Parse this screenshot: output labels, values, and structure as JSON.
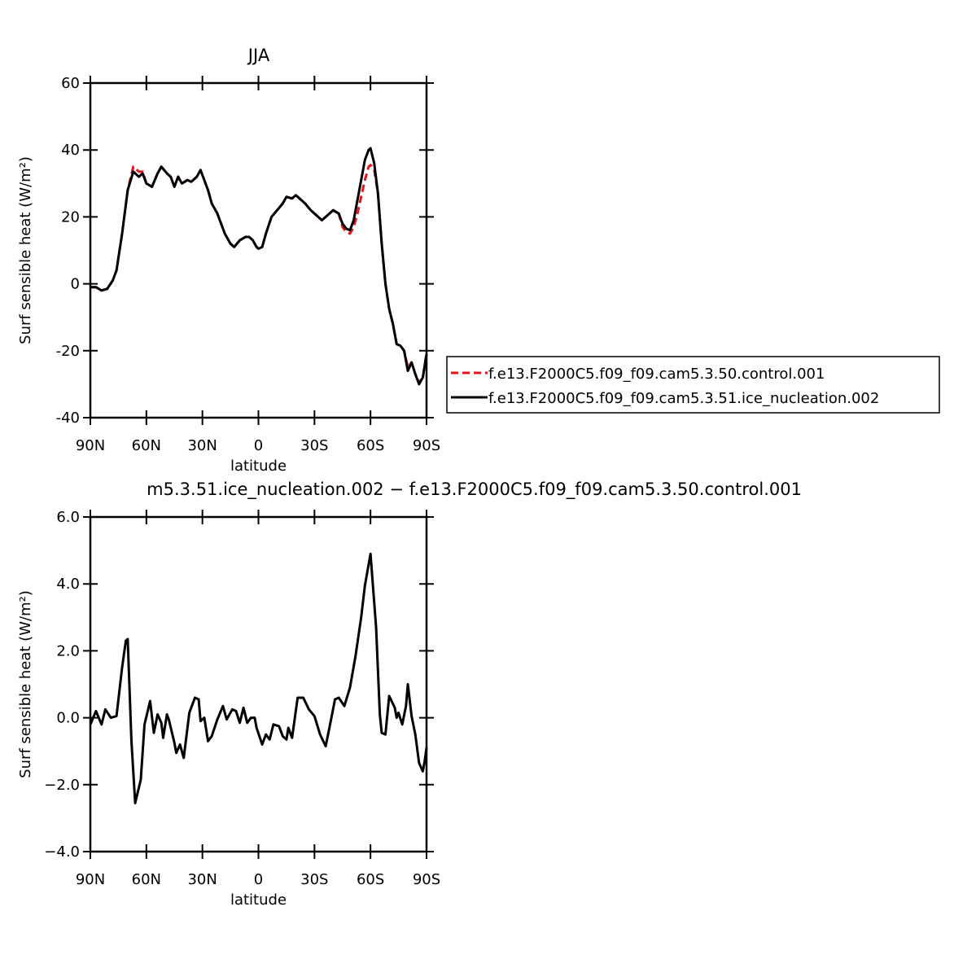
{
  "chart_data": [
    {
      "type": "line",
      "title": "JJA",
      "x_label": "latitude",
      "y_label": "Surf sensible heat (W/m²)",
      "xlim": [
        90,
        -90
      ],
      "xticks": [
        {
          "value": 90,
          "label": "90N"
        },
        {
          "value": 60,
          "label": "60N"
        },
        {
          "value": 30,
          "label": "30N"
        },
        0,
        {
          "value": -30,
          "label": "30S"
        },
        {
          "value": -60,
          "label": "60S"
        },
        {
          "value": -90,
          "label": "90S"
        }
      ],
      "ylim": [
        -40,
        60
      ],
      "yticks": [
        -40,
        -20,
        0,
        20,
        40,
        60
      ],
      "legend": "right",
      "x": [
        90,
        87,
        84,
        81,
        78,
        76,
        73,
        70,
        67,
        64,
        62,
        60,
        57,
        54,
        52,
        49,
        47,
        45,
        43,
        41,
        38,
        36,
        33,
        31,
        29,
        27,
        25,
        22,
        20,
        18,
        15,
        13,
        10,
        7,
        5,
        3,
        1,
        0,
        -2,
        -4,
        -7,
        -10,
        -13,
        -15,
        -18,
        -20,
        -22,
        -25,
        -28,
        -31,
        -34,
        -37,
        -40,
        -43,
        -45,
        -47,
        -49,
        -51,
        -53,
        -55,
        -57,
        -59,
        -60,
        -62,
        -64,
        -66,
        -68,
        -70,
        -72,
        -74,
        -76,
        -78,
        -80,
        -82,
        -84,
        -86,
        -88,
        -90
      ],
      "series": [
        {
          "name": "f.e13.F2000C5.f09_f09.cam5.3.50.control.001",
          "color": "#e8141b",
          "dash": true,
          "values": [
            -1,
            -1,
            -2,
            -1.5,
            1,
            4,
            15,
            28,
            35,
            33.5,
            33.5,
            30,
            29,
            33,
            35,
            33,
            32,
            29,
            32,
            30,
            31,
            30.5,
            32,
            34,
            31,
            28,
            24,
            21,
            18,
            15,
            12,
            11,
            13,
            14,
            14,
            13,
            11,
            10.5,
            11,
            15,
            20,
            22,
            24,
            26,
            25.5,
            26.5,
            25.5,
            24,
            22,
            20.5,
            19,
            20.5,
            22,
            21,
            17,
            15.5,
            15,
            17,
            21,
            26,
            31,
            35,
            35.5,
            34,
            27,
            12,
            0,
            -7.5,
            -12,
            -18,
            -18.5,
            -20,
            -25,
            -23.5,
            -27,
            -29.5,
            -28,
            -21
          ]
        },
        {
          "name": "f.e13.F2000C5.f09_f09.cam5.3.51.ice_nucleation.002",
          "color": "#000000",
          "dash": false,
          "values": [
            -1,
            -1,
            -2,
            -1.5,
            1,
            4,
            15,
            28,
            33.5,
            32,
            33,
            30,
            29,
            33,
            35,
            33,
            32,
            29,
            32,
            30,
            31,
            30.5,
            32,
            34,
            31,
            28,
            24,
            21,
            18,
            15,
            12,
            11,
            13,
            14,
            14,
            13,
            11,
            10.5,
            11,
            15,
            20,
            22,
            24,
            26,
            25.5,
            26.5,
            25.5,
            24,
            22,
            20.5,
            19,
            20.5,
            22,
            21,
            18,
            16.5,
            16,
            19,
            25,
            31,
            37,
            40,
            40.5,
            36,
            27,
            12,
            0,
            -7.5,
            -12,
            -18,
            -18.5,
            -20,
            -26,
            -23.5,
            -27,
            -30,
            -28,
            -21
          ]
        }
      ]
    },
    {
      "type": "line",
      "title": "m5.3.51.ice_nucleation.002 − f.e13.F2000C5.f09_f09.cam5.3.50.control.001",
      "x_label": "latitude",
      "y_label": "Surf sensible heat (W/m²)",
      "xlim": [
        90,
        -90
      ],
      "xticks": [
        {
          "value": 90,
          "label": "90N"
        },
        {
          "value": 60,
          "label": "60N"
        },
        {
          "value": 30,
          "label": "30N"
        },
        0,
        {
          "value": -30,
          "label": "30S"
        },
        {
          "value": -60,
          "label": "60S"
        },
        {
          "value": -90,
          "label": "90S"
        }
      ],
      "ylim": [
        -4,
        6
      ],
      "yticks": [
        {
          "value": -4,
          "label": "−4.0"
        },
        {
          "value": -2,
          "label": "−2.0"
        },
        {
          "value": 0,
          "label": "0.0"
        },
        {
          "value": 2,
          "label": "2.0"
        },
        {
          "value": 4,
          "label": "4.0"
        },
        {
          "value": 6,
          "label": "6.0"
        }
      ],
      "x": [
        90,
        87,
        84,
        82,
        79,
        76,
        73,
        71,
        70,
        68,
        66,
        63,
        61,
        58,
        56,
        54,
        52,
        51,
        49,
        48,
        45,
        44,
        42,
        40,
        37,
        34,
        32,
        31,
        29,
        27,
        25,
        22,
        19,
        17,
        14,
        12,
        10,
        8,
        6,
        4,
        2,
        1,
        -2,
        -4,
        -6,
        -8,
        -11,
        -13,
        -15,
        -16,
        -18,
        -21,
        -24,
        -27,
        -30,
        -33,
        -36,
        -38,
        -41,
        -43,
        -46,
        -49,
        -52,
        -55,
        -57,
        -60,
        -63,
        -65,
        -66,
        -68,
        -70,
        -73,
        -74,
        -75,
        -77,
        -79,
        -80,
        -82,
        -84,
        -86,
        -88,
        -89,
        -90
      ],
      "series": [
        {
          "color": "#000000",
          "dash": false,
          "values": [
            -0.2,
            0.2,
            -0.2,
            0.25,
            0,
            0.05,
            1.5,
            2.3,
            2.35,
            -0.7,
            -2.55,
            -1.85,
            -0.2,
            0.5,
            -0.45,
            0.1,
            -0.15,
            -0.6,
            0.1,
            -0.05,
            -0.75,
            -1.05,
            -0.8,
            -1.2,
            0.15,
            0.6,
            0.55,
            -0.1,
            0,
            -0.7,
            -0.55,
            -0.05,
            0.35,
            -0.05,
            0.25,
            0.2,
            -0.15,
            0.3,
            -0.15,
            0,
            0,
            -0.3,
            -0.8,
            -0.5,
            -0.65,
            -0.2,
            -0.25,
            -0.55,
            -0.65,
            -0.3,
            -0.6,
            0.6,
            0.6,
            0.25,
            0.05,
            -0.5,
            -0.85,
            -0.3,
            0.55,
            0.6,
            0.35,
            0.9,
            1.85,
            3,
            3.95,
            4.9,
            2.7,
            0.1,
            -0.45,
            -0.5,
            0.65,
            0.3,
            0,
            0.15,
            -0.2,
            0.35,
            1.0,
            0.05,
            -0.5,
            -1.35,
            -1.6,
            -1.3,
            -0.9
          ]
        }
      ]
    }
  ]
}
